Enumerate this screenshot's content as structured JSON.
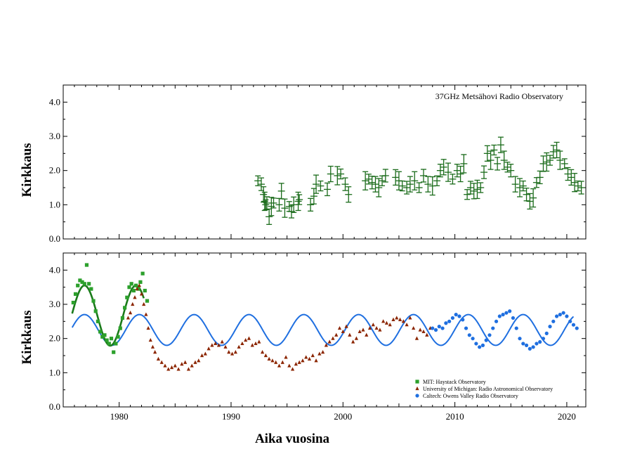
{
  "chart_data": [
    {
      "type": "scatter",
      "panel": "top",
      "annotation": "37GHz Metsähovi Radio Observatory",
      "ylabel": "Kirkkaus",
      "xlim": [
        1975,
        2021.7
      ],
      "ylim": [
        0,
        4.5
      ],
      "yticks": [
        "0.0",
        "1.0",
        "2.0",
        "3.0",
        "4.0"
      ],
      "color": "#1a6b1a",
      "series": [
        {
          "name": "Metsähovi 37GHz",
          "x": [
            1992.4,
            1992.7,
            1992.9,
            1993.0,
            1993.1,
            1993.2,
            1993.4,
            1993.6,
            1993.8,
            1994.3,
            1994.5,
            1994.8,
            1995.2,
            1995.4,
            1995.6,
            1996.0,
            1996.1,
            1997.1,
            1997.4,
            1997.6,
            1998.0,
            1998.6,
            1998.9,
            1999.5,
            1999.8,
            2000.2,
            2000.5,
            2002.0,
            2002.3,
            2002.6,
            2002.9,
            2003.2,
            2003.5,
            2003.8,
            2004.7,
            2005.0,
            2005.3,
            2005.7,
            2006.0,
            2006.4,
            2006.8,
            2007.2,
            2007.6,
            2008.0,
            2008.4,
            2008.7,
            2009.0,
            2009.4,
            2009.8,
            2010.2,
            2010.5,
            2010.8,
            2011.1,
            2011.4,
            2011.7,
            2012.0,
            2012.3,
            2012.6,
            2012.9,
            2013.2,
            2013.5,
            2013.8,
            2014.1,
            2014.4,
            2014.7,
            2015.0,
            2015.4,
            2015.8,
            2016.1,
            2016.4,
            2016.7,
            2017.0,
            2017.3,
            2017.6,
            2017.9,
            2018.2,
            2018.5,
            2018.8,
            2019.1,
            2019.4,
            2019.8,
            2020.1,
            2020.4,
            2020.7,
            2021.0,
            2021.3
          ],
          "y": [
            1.7,
            1.6,
            1.3,
            1.1,
            1.0,
            1.05,
            0.65,
            0.95,
            1.05,
            1.0,
            1.4,
            0.9,
            0.95,
            0.8,
            1.0,
            1.1,
            1.15,
            1.0,
            1.25,
            1.6,
            1.55,
            1.45,
            1.9,
            1.85,
            1.9,
            1.6,
            1.3,
            1.7,
            1.75,
            1.65,
            1.6,
            1.5,
            1.7,
            1.85,
            1.8,
            1.7,
            1.55,
            1.5,
            1.6,
            1.7,
            1.5,
            1.85,
            1.6,
            1.55,
            1.7,
            2.0,
            2.1,
            1.95,
            1.75,
            2.0,
            1.9,
            2.2,
            1.3,
            1.5,
            1.4,
            1.45,
            1.5,
            1.95,
            2.5,
            2.3,
            2.6,
            2.2,
            2.75,
            2.3,
            2.1,
            2.0,
            1.6,
            1.5,
            1.55,
            1.3,
            1.1,
            1.2,
            1.65,
            1.8,
            2.2,
            2.25,
            2.3,
            2.55,
            2.6,
            2.3,
            2.2,
            1.9,
            1.8,
            1.65,
            1.55,
            1.5
          ]
        }
      ]
    },
    {
      "type": "scatter",
      "panel": "bottom",
      "xlabel": "Aika vuosina",
      "ylabel": "Kirkkaus",
      "xlim": [
        1975,
        2021.7
      ],
      "ylim": [
        0,
        4.5
      ],
      "yticks": [
        "0.0",
        "1.0",
        "2.0",
        "3.0",
        "4.0"
      ],
      "xticks": [
        "1980",
        "1990",
        "2000",
        "2010",
        "2020"
      ],
      "legend_position": "bottom-right",
      "series": [
        {
          "name": "MIT: Haystack Observatory",
          "marker": "square",
          "color": "#2ca02c",
          "x": [
            1975.9,
            1976.1,
            1976.3,
            1976.5,
            1976.7,
            1976.9,
            1977.1,
            1977.3,
            1977.5,
            1977.7,
            1977.9,
            1978.1,
            1978.3,
            1978.5,
            1978.7,
            1978.9,
            1979.1,
            1979.3,
            1979.5,
            1979.7,
            1979.9,
            1980.1,
            1980.3,
            1980.5,
            1980.7,
            1980.9,
            1981.1,
            1981.3,
            1981.5,
            1981.7,
            1981.9,
            1982.1,
            1982.3,
            1982.5
          ],
          "y": [
            3.05,
            3.3,
            3.55,
            3.7,
            3.65,
            3.6,
            4.15,
            3.6,
            3.45,
            3.1,
            2.8,
            2.5,
            2.2,
            2.05,
            2.1,
            1.95,
            1.85,
            2.0,
            1.6,
            1.85,
            2.05,
            2.3,
            2.6,
            2.9,
            3.2,
            3.5,
            3.6,
            3.4,
            3.55,
            3.45,
            3.65,
            3.9,
            3.4,
            3.1
          ]
        },
        {
          "name": "University of Michigan: Radio Astronomical Observatory",
          "marker": "triangle",
          "color": "#8b2500",
          "x": [
            1980.8,
            1981.0,
            1981.2,
            1981.4,
            1981.6,
            1981.8,
            1982.0,
            1982.2,
            1982.4,
            1982.6,
            1982.8,
            1983.0,
            1983.2,
            1983.5,
            1983.8,
            1984.1,
            1984.4,
            1984.7,
            1985.0,
            1985.3,
            1985.6,
            1985.9,
            1986.2,
            1986.5,
            1986.8,
            1987.1,
            1987.4,
            1987.7,
            1988.0,
            1988.3,
            1988.6,
            1988.9,
            1989.2,
            1989.5,
            1989.8,
            1990.1,
            1990.4,
            1990.7,
            1991.0,
            1991.3,
            1991.6,
            1991.9,
            1992.2,
            1992.5,
            1992.8,
            1993.1,
            1993.4,
            1993.7,
            1994.0,
            1994.3,
            1994.6,
            1994.9,
            1995.2,
            1995.5,
            1995.8,
            1996.1,
            1996.4,
            1996.7,
            1997.0,
            1997.3,
            1997.6,
            1997.9,
            1998.2,
            1998.5,
            1998.8,
            1999.1,
            1999.4,
            1999.7,
            2000.0,
            2000.3,
            2000.6,
            2000.9,
            2001.2,
            2001.5,
            2001.8,
            2002.1,
            2002.4,
            2002.7,
            2003.0,
            2003.3,
            2003.6,
            2003.9,
            2004.2,
            2004.5,
            2004.8,
            2005.1,
            2005.4,
            2005.7,
            2006.0,
            2006.3,
            2006.6,
            2006.9,
            2007.2,
            2007.5,
            2007.8
          ],
          "y": [
            2.6,
            2.75,
            3.0,
            3.2,
            3.45,
            3.55,
            3.3,
            3.0,
            2.7,
            2.3,
            1.95,
            1.75,
            1.6,
            1.4,
            1.3,
            1.2,
            1.1,
            1.15,
            1.2,
            1.1,
            1.25,
            1.3,
            1.1,
            1.2,
            1.3,
            1.35,
            1.5,
            1.55,
            1.7,
            1.8,
            1.85,
            1.8,
            1.9,
            1.75,
            1.6,
            1.55,
            1.6,
            1.75,
            1.85,
            1.95,
            2.0,
            1.8,
            1.85,
            1.9,
            1.6,
            1.5,
            1.4,
            1.35,
            1.3,
            1.2,
            1.3,
            1.45,
            1.2,
            1.1,
            1.25,
            1.3,
            1.35,
            1.45,
            1.4,
            1.5,
            1.35,
            1.55,
            1.6,
            1.8,
            1.9,
            2.0,
            2.1,
            2.3,
            2.2,
            2.35,
            2.1,
            1.9,
            2.0,
            2.2,
            2.25,
            2.1,
            2.3,
            2.4,
            2.3,
            2.25,
            2.5,
            2.45,
            2.4,
            2.55,
            2.6,
            2.55,
            2.5,
            2.4,
            2.6,
            2.3,
            2.0,
            2.25,
            2.2,
            2.1,
            2.3
          ]
        },
        {
          "name": "Caltech: Owens Valley Radio Observatory",
          "marker": "circle",
          "color": "#1f6fe0",
          "x": [
            2008.0,
            2008.3,
            2008.6,
            2008.9,
            2009.2,
            2009.5,
            2009.8,
            2010.1,
            2010.4,
            2010.7,
            2011.0,
            2011.3,
            2011.6,
            2011.9,
            2012.2,
            2012.5,
            2012.8,
            2013.1,
            2013.4,
            2013.7,
            2014.0,
            2014.3,
            2014.6,
            2014.9,
            2015.2,
            2015.5,
            2015.8,
            2016.1,
            2016.4,
            2016.7,
            2017.0,
            2017.3,
            2017.6,
            2017.9,
            2018.2,
            2018.5,
            2018.8,
            2019.1,
            2019.4,
            2019.7,
            2020.0,
            2020.3,
            2020.6,
            2020.9
          ],
          "y": [
            2.3,
            2.25,
            2.35,
            2.3,
            2.45,
            2.5,
            2.6,
            2.7,
            2.65,
            2.55,
            2.3,
            2.1,
            2.0,
            1.85,
            1.75,
            1.8,
            1.95,
            2.1,
            2.3,
            2.5,
            2.65,
            2.7,
            2.75,
            2.8,
            2.6,
            2.3,
            2.0,
            1.85,
            1.8,
            1.7,
            1.75,
            1.85,
            1.9,
            2.0,
            2.15,
            2.35,
            2.5,
            2.65,
            2.7,
            2.75,
            2.65,
            2.5,
            2.4,
            2.3
          ]
        }
      ],
      "model_curves": [
        {
          "name": "blue-sinusoid",
          "color": "#1f6fe0",
          "period": 4.9,
          "mean": 2.25,
          "amplitude": 0.45,
          "phase_year": 1976.9,
          "x_range": [
            1975.8,
            2020.6
          ]
        },
        {
          "name": "green-fit",
          "color": "#1a7a1a",
          "period": 4.6,
          "mean": 2.67,
          "amplitude": 0.88,
          "phase_year": 1976.9,
          "x_range": [
            1975.8,
            1982.2
          ]
        }
      ]
    }
  ]
}
